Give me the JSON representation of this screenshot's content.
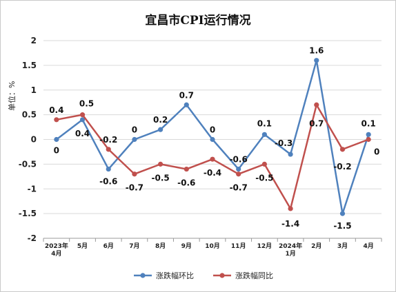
{
  "chart_data": {
    "type": "line",
    "title": "宜昌市CPI运行情况",
    "ylabel": "单位：%",
    "xlabel": "",
    "ylim": [
      -2,
      2
    ],
    "yticks": [
      "2",
      "1.5",
      "1",
      "0.5",
      "0",
      "-0.5",
      "-1",
      "-1.5",
      "-2"
    ],
    "categories": [
      [
        "2023年",
        "4月"
      ],
      [
        "5月"
      ],
      [
        "6月"
      ],
      [
        "7月"
      ],
      [
        "8月"
      ],
      [
        "9月"
      ],
      [
        "10月"
      ],
      [
        "11月"
      ],
      [
        "12月"
      ],
      [
        "2024年",
        "1月"
      ],
      [
        "2月"
      ],
      [
        "3月"
      ],
      [
        "4月"
      ]
    ],
    "series": [
      {
        "name": "涨跌幅环比",
        "color": "#4f81bd",
        "values": [
          0,
          0.4,
          -0.6,
          0,
          0.2,
          0.7,
          0,
          -0.6,
          0.1,
          -0.3,
          1.6,
          -1.5,
          0.1
        ],
        "labels": [
          "0",
          "0.4",
          "-0.6",
          "0",
          "0.2",
          "0.7",
          "0",
          "-0.6",
          "0.1",
          "-0.3",
          "1.6",
          "-1.5",
          "0.1"
        ]
      },
      {
        "name": "涨跌幅同比",
        "color": "#c0504d",
        "values": [
          0.4,
          0.5,
          -0.2,
          -0.7,
          -0.5,
          -0.6,
          -0.4,
          -0.7,
          -0.5,
          -1.4,
          0.7,
          -0.2,
          0
        ],
        "labels": [
          "0.4",
          "0.5",
          "-0.2",
          "-0.7",
          "-0.5",
          "-0.6",
          "-0.4",
          "-0.7",
          "-0.5",
          "-1.4",
          "0.7",
          "-0.2",
          "0"
        ]
      }
    ],
    "grid": true,
    "legend": "bottom"
  }
}
